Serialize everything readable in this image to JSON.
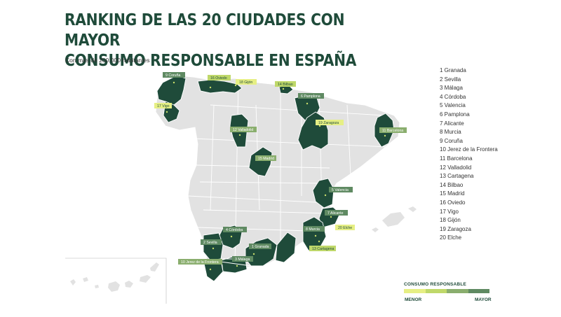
{
  "title_lines": [
    "RANKING DE LAS 20 CIUDADES CON MAYOR",
    "CONSUMO RESPONSABLE EN ESPAÑA"
  ],
  "subtitle": "Con más de 200.000 habitantes",
  "ranking": [
    "1 Granada",
    "2 Sevilla",
    "3 Málaga",
    "4 Córdoba",
    "5 Valencia",
    "6 Pamplona",
    "7 Alicante",
    "8 Murcia",
    "9 Coruña",
    "10 Jerez de la Frontera",
    "11 Barcelona",
    "12 Valladolid",
    "13 Cartagena",
    "14 Bilbao",
    "15 Madrid",
    "16 Oviedo",
    "17 Vigo",
    "18 Gijón",
    "19 Zaragoza",
    "20 Elche"
  ],
  "map_labels": [
    {
      "text": "9 Coruña",
      "tier": 4
    },
    {
      "text": "16 Oviedo",
      "tier": 2
    },
    {
      "text": "18 Gijón",
      "tier": 1
    },
    {
      "text": "14 Bilbao",
      "tier": 2
    },
    {
      "text": "6 Pamplona",
      "tier": 4
    },
    {
      "text": "17 Vigo",
      "tier": 1
    },
    {
      "text": "19 Zaragoza",
      "tier": 1
    },
    {
      "text": "11 Barcelona",
      "tier": 3
    },
    {
      "text": "12 Valladolid",
      "tier": 3
    },
    {
      "text": "15 Madrid",
      "tier": 3
    },
    {
      "text": "5 Valencia",
      "tier": 4
    },
    {
      "text": "7 Alicante",
      "tier": 4
    },
    {
      "text": "20 Elche",
      "tier": 1
    },
    {
      "text": "8 Murcia",
      "tier": 4
    },
    {
      "text": "13 Cartagena",
      "tier": 3
    },
    {
      "text": "2 Sevilla",
      "tier": 4
    },
    {
      "text": "4 Córdoba",
      "tier": 4
    },
    {
      "text": "1 Granada",
      "tier": 4
    },
    {
      "text": "3 Málaga",
      "tier": 4
    },
    {
      "text": "10 Jerez de la Frontera",
      "tier": 3
    }
  ],
  "legend": {
    "title": "CONSUMO RESPONSABLE",
    "min_label": "MENOR",
    "max_label": "MAYOR",
    "colors": [
      "#e6ef84",
      "#bfd86a",
      "#8aae6e",
      "#5f8a62"
    ]
  },
  "colors": {
    "highlight_province": "#1f4b3a",
    "base_province": "#e2e2e2",
    "province_border": "#ffffff",
    "title": "#1f4b3a"
  }
}
